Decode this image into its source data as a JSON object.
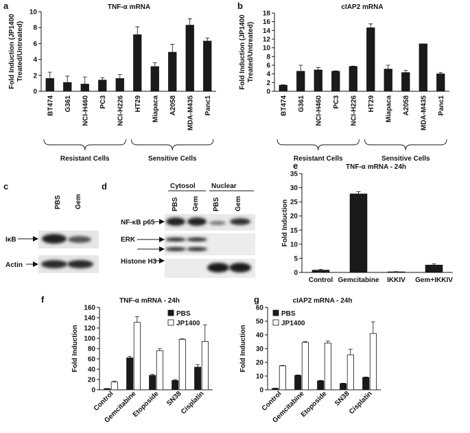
{
  "chart_data": [
    {
      "type": "bar",
      "panel_label": "a",
      "title": "TNF-α mRNA",
      "ylabel": [
        "Fold Induction (JP1400",
        "Treated/Untreated)"
      ],
      "categories": [
        "BT474",
        "G361",
        "NCI-H460",
        "PC3",
        "NCI-H226",
        "HT29",
        "Miapaca",
        "A2058",
        "MDA-M435",
        "Panc1"
      ],
      "values": [
        1.6,
        1.1,
        0.9,
        1.4,
        1.6,
        7.1,
        3.1,
        4.9,
        8.3,
        6.3
      ],
      "errors": [
        0.8,
        0.8,
        0.9,
        0.3,
        0.5,
        1.0,
        0.5,
        1.0,
        0.8,
        0.4
      ],
      "color": "#1a1a1a",
      "ylim": [
        0,
        10
      ],
      "yticks": [
        0,
        2,
        4,
        6,
        8,
        10
      ],
      "groups": [
        "Resistant Cells",
        "Sensitive Cells"
      ]
    },
    {
      "type": "bar",
      "panel_label": "b",
      "title": "cIAP2 mRNA",
      "ylabel": [
        "Fold Induction (JP1400",
        "Treated/Untreated)"
      ],
      "categories": [
        "BT474",
        "G361",
        "NCI-H460",
        "PC3",
        "NCI-H226",
        "HT29",
        "Miapaca",
        "A2058",
        "MDA-M435",
        "Panc1"
      ],
      "values": [
        1.4,
        4.6,
        4.9,
        4.6,
        5.7,
        14.6,
        5.1,
        4.3,
        10.9,
        4.0
      ],
      "errors": [
        0.1,
        1.4,
        0.6,
        0.1,
        0.1,
        0.9,
        0.9,
        0.5,
        0,
        0.3
      ],
      "color": "#1a1a1a",
      "ylim": [
        0,
        18
      ],
      "yticks": [
        0,
        2,
        4,
        6,
        8,
        10,
        12,
        14,
        16,
        18
      ],
      "groups": [
        "Resistant Cells",
        "Sensitive Cells"
      ]
    },
    {
      "type": "bar",
      "panel_label": "e",
      "title": "TNF-α mRNA - 24h",
      "ylabel": [
        "Fold Induction"
      ],
      "categories": [
        "Control",
        "Gemcitabine",
        "IKKIV",
        "Gem+IKKIV"
      ],
      "values": [
        0.8,
        27.8,
        0.2,
        2.6
      ],
      "errors": [
        0.3,
        0.8,
        0.1,
        0.4
      ],
      "color": "#1a1a1a",
      "ylim": [
        0,
        35
      ],
      "yticks": [
        0,
        5,
        10,
        15,
        20,
        25,
        30,
        35
      ]
    },
    {
      "type": "grouped-bar",
      "panel_label": "f",
      "title": "TNF-α mRNA - 24h",
      "ylabel": [
        "Fold Induction"
      ],
      "categories": [
        "Control",
        "Gemcitabine",
        "Etoposide",
        "SN38",
        "Cisplatin"
      ],
      "series": [
        {
          "name": "PBS",
          "color": "#1a1a1a",
          "values": [
            2,
            62,
            28,
            18,
            44
          ],
          "errors": [
            0.5,
            3,
            2,
            2,
            5
          ]
        },
        {
          "name": "JP1400",
          "color": "#ffffff",
          "values": [
            15,
            131,
            76,
            98,
            94
          ],
          "errors": [
            2,
            11,
            4,
            1,
            32
          ]
        }
      ],
      "ylim": [
        0,
        160
      ],
      "yticks": [
        0,
        20,
        40,
        60,
        80,
        100,
        120,
        140,
        160
      ]
    },
    {
      "type": "grouped-bar",
      "panel_label": "g",
      "title": "cIAP2 mRNA - 24h",
      "ylabel": [
        "Fold Induction"
      ],
      "categories": [
        "Control",
        "Gemcitabine",
        "Etoposide",
        "SN38",
        "Cisplatin"
      ],
      "series": [
        {
          "name": "PBS",
          "color": "#1a1a1a",
          "values": [
            1,
            10.5,
            6.5,
            4.5,
            9
          ],
          "errors": [
            0.2,
            0.3,
            0.3,
            0.3,
            0.3
          ]
        },
        {
          "name": "JP1400",
          "color": "#ffffff",
          "values": [
            17.5,
            34.5,
            34,
            25.5,
            41
          ],
          "errors": [
            0.3,
            0.6,
            1.5,
            4,
            8.5
          ]
        }
      ],
      "ylim": [
        0,
        60
      ],
      "yticks": [
        0,
        10,
        20,
        30,
        40,
        50,
        60
      ]
    }
  ],
  "blots": {
    "c": {
      "panel_label": "c",
      "lanes": [
        "PBS",
        "Gem"
      ],
      "rows": [
        "IκB",
        "Actin"
      ]
    },
    "d": {
      "panel_label": "d",
      "fractions": [
        "Cytosol",
        "Nuclear"
      ],
      "lanes": [
        "PBS",
        "Gem",
        "PBS",
        "Gem"
      ],
      "rows": [
        "NF-κB p65",
        "ERK",
        "Histone H3"
      ]
    }
  }
}
